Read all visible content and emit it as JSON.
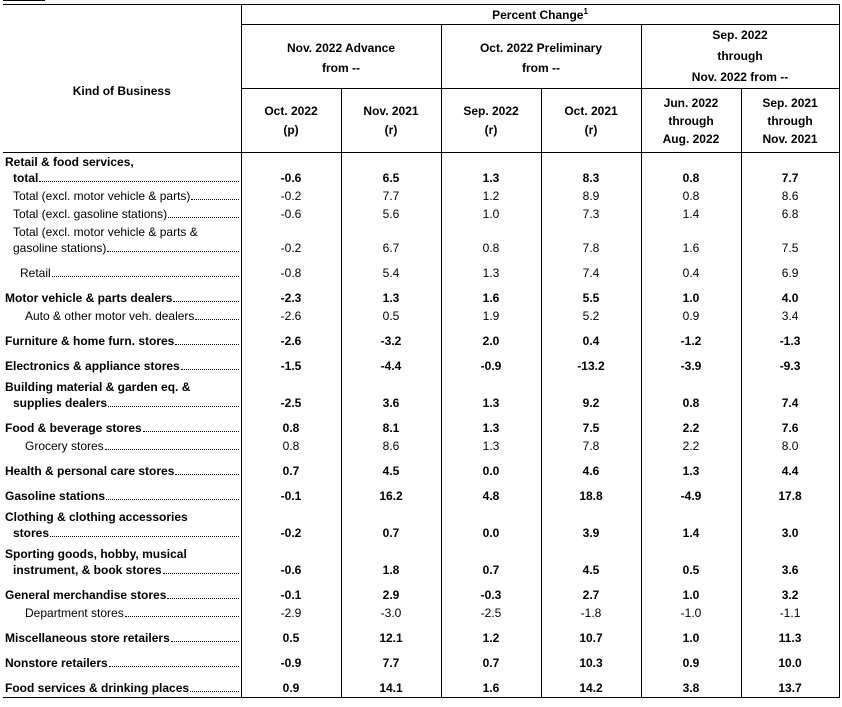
{
  "header": {
    "kind_of_business": "Kind of Business",
    "percent_change": "Percent Change",
    "percent_change_note": "1",
    "groups": [
      {
        "lines": [
          "Nov. 2022 Advance",
          "from --"
        ]
      },
      {
        "lines": [
          "Oct. 2022 Preliminary",
          "from --"
        ]
      },
      {
        "lines": [
          "Sep. 2022",
          "through",
          "Nov. 2022 from --"
        ]
      }
    ],
    "columns": [
      {
        "lines": [
          "Oct. 2022",
          "(p)"
        ]
      },
      {
        "lines": [
          "Nov. 2021",
          "(r)"
        ]
      },
      {
        "lines": [
          "Sep. 2022",
          "(r)"
        ]
      },
      {
        "lines": [
          "Oct. 2021",
          "(r)"
        ]
      },
      {
        "lines": [
          "Jun. 2022",
          "through",
          "Aug. 2022"
        ]
      },
      {
        "lines": [
          "Sep. 2021",
          "through",
          "Nov. 2021"
        ]
      }
    ]
  },
  "rows": [
    {
      "lines": [
        "Retail & food services,",
        "total"
      ],
      "bold": true,
      "indent": 0,
      "values": [
        "-0.6",
        "6.5",
        "1.3",
        "8.3",
        "0.8",
        "7.7"
      ]
    },
    {
      "lines": [
        "Total (excl. motor vehicle & parts)"
      ],
      "bold": false,
      "indent": 1,
      "values": [
        "-0.2",
        "7.7",
        "1.2",
        "8.9",
        "0.8",
        "8.6"
      ]
    },
    {
      "lines": [
        "Total (excl. gasoline stations)"
      ],
      "bold": false,
      "indent": 1,
      "values": [
        "-0.6",
        "5.6",
        "1.0",
        "7.3",
        "1.4",
        "6.8"
      ]
    },
    {
      "lines": [
        "Total (excl. motor vehicle & parts &",
        "gasoline stations)"
      ],
      "bold": false,
      "indent": 1,
      "values": [
        "-0.2",
        "6.7",
        "0.8",
        "7.8",
        "1.6",
        "7.5"
      ]
    },
    {
      "lines": [
        "Retail"
      ],
      "bold": false,
      "indent": 3,
      "gap": true,
      "values": [
        "-0.8",
        "5.4",
        "1.3",
        "7.4",
        "0.4",
        "6.9"
      ]
    },
    {
      "lines": [
        "Motor vehicle & parts dealers"
      ],
      "bold": true,
      "indent": 0,
      "gap": true,
      "values": [
        "-2.3",
        "1.3",
        "1.6",
        "5.5",
        "1.0",
        "4.0"
      ]
    },
    {
      "lines": [
        "Auto & other motor veh. dealers"
      ],
      "bold": false,
      "indent": 2,
      "values": [
        "-2.6",
        "0.5",
        "1.9",
        "5.2",
        "0.9",
        "3.4"
      ]
    },
    {
      "lines": [
        "Furniture & home furn. stores"
      ],
      "bold": true,
      "indent": 0,
      "gap": true,
      "values": [
        "-2.6",
        "-3.2",
        "2.0",
        "0.4",
        "-1.2",
        "-1.3"
      ]
    },
    {
      "lines": [
        "Electronics & appliance stores"
      ],
      "bold": true,
      "indent": 0,
      "gap": true,
      "values": [
        "-1.5",
        "-4.4",
        "-0.9",
        "-13.2",
        "-3.9",
        "-9.3"
      ]
    },
    {
      "lines": [
        "Building material & garden eq. &",
        "supplies dealers"
      ],
      "bold": true,
      "indent": 0,
      "gap": true,
      "values": [
        "-2.5",
        "3.6",
        "1.3",
        "9.2",
        "0.8",
        "7.4"
      ]
    },
    {
      "lines": [
        "Food & beverage stores"
      ],
      "bold": true,
      "indent": 0,
      "gap": true,
      "values": [
        "0.8",
        "8.1",
        "1.3",
        "7.5",
        "2.2",
        "7.6"
      ]
    },
    {
      "lines": [
        "Grocery stores"
      ],
      "bold": false,
      "indent": 2,
      "values": [
        "0.8",
        "8.6",
        "1.3",
        "7.8",
        "2.2",
        "8.0"
      ]
    },
    {
      "lines": [
        "Health & personal care stores"
      ],
      "bold": true,
      "indent": 0,
      "gap": true,
      "values": [
        "0.7",
        "4.5",
        "0.0",
        "4.6",
        "1.3",
        "4.4"
      ]
    },
    {
      "lines": [
        "Gasoline stations"
      ],
      "bold": true,
      "indent": 0,
      "gap": true,
      "values": [
        "-0.1",
        "16.2",
        "4.8",
        "18.8",
        "-4.9",
        "17.8"
      ]
    },
    {
      "lines": [
        "Clothing & clothing accessories",
        "stores"
      ],
      "bold": true,
      "indent": 0,
      "gap": true,
      "values": [
        "-0.2",
        "0.7",
        "0.0",
        "3.9",
        "1.4",
        "3.0"
      ]
    },
    {
      "lines": [
        "Sporting goods, hobby, musical",
        "instrument, & book stores"
      ],
      "bold": true,
      "indent": 0,
      "gap": true,
      "values": [
        "-0.6",
        "1.8",
        "0.7",
        "4.5",
        "0.5",
        "3.6"
      ]
    },
    {
      "lines": [
        "General merchandise stores"
      ],
      "bold": true,
      "indent": 0,
      "gap": true,
      "values": [
        "-0.1",
        "2.9",
        "-0.3",
        "2.7",
        "1.0",
        "3.2"
      ]
    },
    {
      "lines": [
        "Department stores"
      ],
      "bold": false,
      "indent": 2,
      "values": [
        "-2.9",
        "-3.0",
        "-2.5",
        "-1.8",
        "-1.0",
        "-1.1"
      ]
    },
    {
      "lines": [
        "Miscellaneous store retailers"
      ],
      "bold": true,
      "indent": 0,
      "gap": true,
      "values": [
        "0.5",
        "12.1",
        "1.2",
        "10.7",
        "1.0",
        "11.3"
      ]
    },
    {
      "lines": [
        "Nonstore retailers"
      ],
      "bold": true,
      "indent": 0,
      "gap": true,
      "values": [
        "-0.9",
        "7.7",
        "0.7",
        "10.3",
        "0.9",
        "10.0"
      ]
    },
    {
      "lines": [
        "Food services & drinking places"
      ],
      "bold": true,
      "indent": 0,
      "gap": true,
      "values": [
        "0.9",
        "14.1",
        "1.6",
        "14.2",
        "3.8",
        "13.7"
      ]
    }
  ]
}
